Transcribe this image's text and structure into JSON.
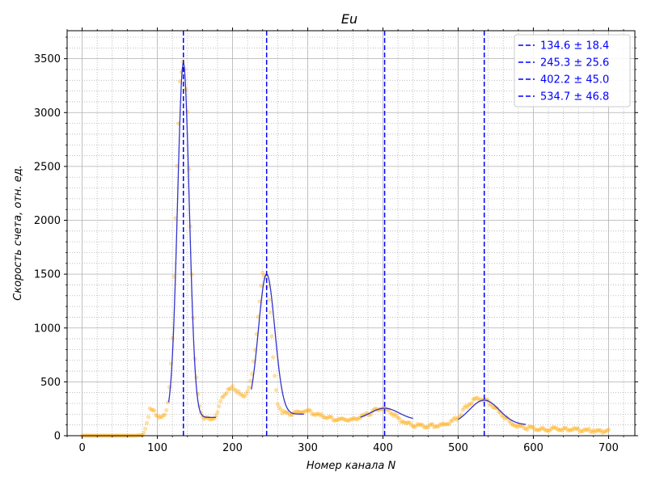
{
  "chart_data": {
    "type": "scatter",
    "title": "Eu",
    "xlabel": "Номер канала N",
    "ylabel": "Скорость счета,  отн. ед.",
    "xlim": [
      -20,
      735
    ],
    "ylim": [
      0,
      3760
    ],
    "xticks": [
      "0",
      "100",
      "200",
      "300",
      "400",
      "500",
      "600",
      "700"
    ],
    "xtick_values": [
      0,
      100,
      200,
      300,
      400,
      500,
      600,
      700
    ],
    "yticks": [
      "0",
      "500",
      "1000",
      "1500",
      "2000",
      "2500",
      "3000",
      "3500"
    ],
    "ytick_values": [
      0,
      500,
      1000,
      1500,
      2000,
      2500,
      3000,
      3500
    ],
    "grid": "major solid + minor dotted",
    "legend_position": "top-right",
    "colors": {
      "points": "#ffa500",
      "fit": "#3333cc",
      "vlines": "#0000ff",
      "grid_major": "#b0b0b0",
      "grid_minor": "#b0b0b0"
    },
    "series": [
      {
        "kind": "measured points",
        "x": [
          0,
          10,
          20,
          30,
          40,
          50,
          60,
          70,
          80,
          85,
          90,
          95,
          100,
          105,
          110,
          115,
          120,
          125,
          130,
          135,
          140,
          145,
          150,
          155,
          160,
          165,
          170,
          175,
          180,
          185,
          190,
          195,
          200,
          205,
          210,
          215,
          220,
          225,
          230,
          235,
          240,
          245,
          250,
          255,
          260,
          265,
          270,
          275,
          280,
          290,
          300,
          310,
          320,
          330,
          340,
          350,
          360,
          370,
          380,
          390,
          400,
          410,
          420,
          430,
          440,
          450,
          460,
          470,
          480,
          490,
          500,
          510,
          520,
          530,
          540,
          550,
          560,
          570,
          580,
          590,
          600,
          610,
          620,
          630,
          640,
          650,
          660,
          670,
          680,
          690,
          700
        ],
        "y": [
          0,
          0,
          0,
          0,
          0,
          0,
          0,
          0,
          5,
          100,
          240,
          220,
          200,
          160,
          190,
          350,
          900,
          2300,
          3300,
          3500,
          3000,
          1700,
          700,
          300,
          180,
          160,
          150,
          170,
          200,
          350,
          390,
          420,
          450,
          420,
          380,
          350,
          420,
          520,
          780,
          1200,
          1500,
          1450,
          1150,
          600,
          300,
          230,
          210,
          200,
          210,
          220,
          230,
          200,
          180,
          160,
          150,
          150,
          150,
          170,
          200,
          240,
          260,
          220,
          160,
          120,
          100,
          90,
          90,
          90,
          100,
          120,
          170,
          260,
          330,
          350,
          320,
          250,
          180,
          120,
          90,
          70,
          70,
          60,
          60,
          60,
          60,
          60,
          50,
          50,
          50,
          40,
          40
        ]
      },
      {
        "kind": "gaussian fit",
        "segments": [
          {
            "x_range": [
              115,
              178
            ],
            "center": 134.6,
            "amplitude": 3290,
            "sigma": 7.8,
            "baseline": 170
          },
          {
            "x_range": [
              225,
              295
            ],
            "center": 245.3,
            "amplitude": 1300,
            "sigma": 10.9,
            "baseline": 200
          },
          {
            "x_range": [
              370,
              440
            ],
            "center": 402.2,
            "amplitude": 110,
            "sigma": 19.1,
            "baseline": 145
          },
          {
            "x_range": [
              500,
              590
            ],
            "center": 534.7,
            "amplitude": 230,
            "sigma": 19.9,
            "baseline": 100
          }
        ]
      }
    ],
    "vlines": [
      {
        "x": 134.6,
        "label": "134.6 ± 18.4"
      },
      {
        "x": 245.3,
        "label": "245.3 ± 25.6"
      },
      {
        "x": 402.2,
        "label": "402.2 ± 45.0"
      },
      {
        "x": 534.7,
        "label": "534.7 ± 46.8"
      }
    ]
  }
}
